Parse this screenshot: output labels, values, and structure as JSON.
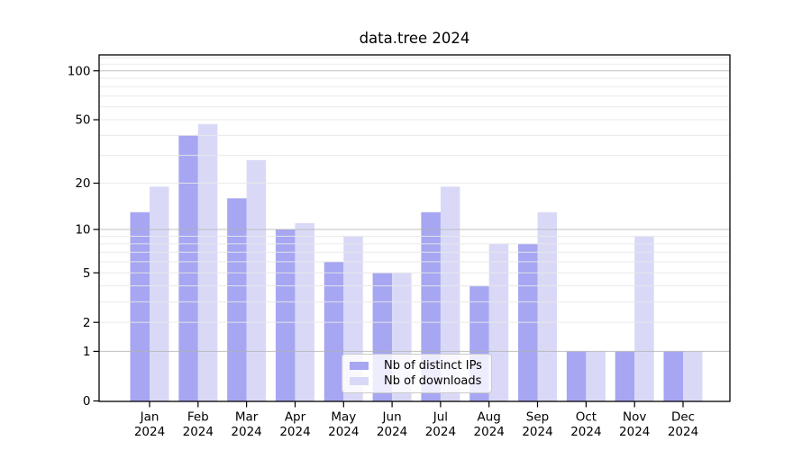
{
  "title": "data.tree 2024",
  "chart_data": {
    "type": "bar",
    "title": "data.tree 2024",
    "categories": [
      "Jan",
      "Feb",
      "Mar",
      "Apr",
      "May",
      "Jun",
      "Jul",
      "Aug",
      "Sep",
      "Oct",
      "Nov",
      "Dec"
    ],
    "year_label": "2024",
    "series": [
      {
        "name": "Nb of distinct IPs",
        "color": "#a6a6f2",
        "values": [
          13,
          40,
          16,
          10,
          6,
          5,
          13,
          4,
          8,
          1,
          1,
          1
        ]
      },
      {
        "name": "Nb of downloads",
        "color": "#d9d9f7",
        "values": [
          19,
          47,
          28,
          11,
          9,
          5,
          19,
          8,
          13,
          1,
          9,
          1
        ]
      }
    ],
    "yscale": "log1p",
    "yticks": [
      100,
      50,
      20,
      10,
      5,
      2,
      1,
      0
    ],
    "ytick_labels": [
      "100",
      "50",
      "20",
      "10",
      "5",
      "2",
      "1",
      "0"
    ],
    "minor_gridlines": [
      2,
      3,
      4,
      5,
      6,
      7,
      8,
      9,
      20,
      30,
      40,
      50,
      60,
      70,
      80,
      90,
      110,
      120
    ],
    "major_gridlines": [
      1,
      10,
      100
    ],
    "ylim": [
      0,
      124
    ],
    "grid": true,
    "legend_position": "inside lower-center"
  },
  "colors": {
    "spine": "#000000",
    "minor_grid": "rgba(232,232,232,0.92)",
    "major_grid": "rgba(178,178,178,0.72)"
  }
}
